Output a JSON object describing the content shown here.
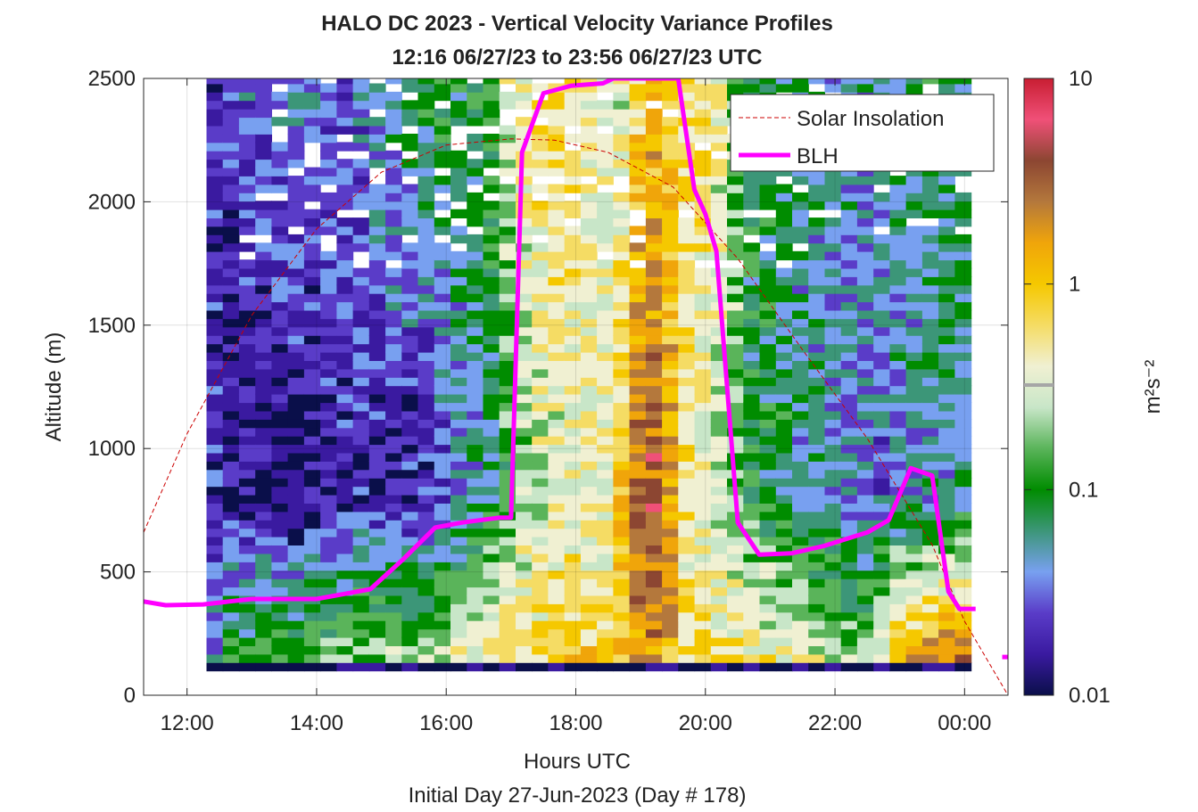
{
  "title": {
    "line1": "HALO DC 2023 - Vertical Velocity Variance Profiles",
    "line2": "12:16 06/27/23 to 23:56 06/27/23  UTC"
  },
  "xlabel": "Hours UTC",
  "subtitle": "Initial Day 27-Jun-2023 (Day # 178)",
  "ylabel": "Altitude (m)",
  "colorbar": {
    "label": "m²s⁻²",
    "ticks": [
      "10",
      "1",
      "0.1",
      "0.01"
    ]
  },
  "chart_data": {
    "type": "heatmap",
    "title": "HALO DC 2023 - Vertical Velocity Variance Profiles",
    "subtitle": "12:16 06/27/23 to 23:56 06/27/23  UTC",
    "xlabel": "Hours UTC",
    "ylabel": "Altitude (m)",
    "xlim": [
      11.33,
      24.67
    ],
    "ylim": [
      0,
      2500
    ],
    "x_ticks": [
      {
        "value": 12,
        "label": "12:00"
      },
      {
        "value": 14,
        "label": "14:00"
      },
      {
        "value": 16,
        "label": "16:00"
      },
      {
        "value": 18,
        "label": "18:00"
      },
      {
        "value": 20,
        "label": "20:00"
      },
      {
        "value": 22,
        "label": "22:00"
      },
      {
        "value": 24,
        "label": "00:00"
      }
    ],
    "y_ticks": [
      0,
      500,
      1000,
      1500,
      2000,
      2500
    ],
    "grid": true,
    "colorscale": {
      "scale": "log",
      "range": [
        0.01,
        10
      ],
      "unit": "m^2 s^-2",
      "stops": [
        "#0a0f4a",
        "#3a1aa0",
        "#5a3cc8",
        "#78a0f0",
        "#3c9678",
        "#008c00",
        "#5ab45a",
        "#c8e6c8",
        "#f0f0d2",
        "#f5dc64",
        "#f5c800",
        "#f0a50a",
        "#b4783c",
        "#8c4632",
        "#f05078",
        "#c81e32"
      ]
    },
    "variance_columns_approx": [
      {
        "hour": 12.5,
        "low_m2s2": 0.1,
        "mid_m2s2": 0.02,
        "high_m2s2": 0.02
      },
      {
        "hour": 13.5,
        "low_m2s2": 0.15,
        "mid_m2s2": 0.01,
        "high_m2s2": 0.05
      },
      {
        "hour": 14.5,
        "low_m2s2": 0.2,
        "mid_m2s2": 0.02,
        "high_m2s2": 0.03
      },
      {
        "hour": 15.5,
        "low_m2s2": 0.25,
        "mid_m2s2": 0.015,
        "high_m2s2": 0.08
      },
      {
        "hour": 16.5,
        "low_m2s2": 0.5,
        "mid_m2s2": 0.05,
        "high_m2s2": 0.1
      },
      {
        "hour": 17.5,
        "low_m2s2": 0.8,
        "mid_m2s2": 0.3,
        "high_m2s2": 0.8
      },
      {
        "hour": 18.5,
        "low_m2s2": 0.8,
        "mid_m2s2": 0.4,
        "high_m2s2": 0.2
      },
      {
        "hour": 19.0,
        "low_m2s2": 2.0,
        "mid_m2s2": 4.0,
        "high_m2s2": 1.0
      },
      {
        "hour": 19.5,
        "low_m2s2": 0.7,
        "mid_m2s2": 0.5,
        "high_m2s2": 0.8
      },
      {
        "hour": 20.5,
        "low_m2s2": 0.6,
        "mid_m2s2": 0.1,
        "high_m2s2": 0.08
      },
      {
        "hour": 21.5,
        "low_m2s2": 0.3,
        "mid_m2s2": 0.05,
        "high_m2s2": 0.05
      },
      {
        "hour": 22.5,
        "low_m2s2": 0.2,
        "mid_m2s2": 0.03,
        "high_m2s2": 0.05
      },
      {
        "hour": 23.5,
        "low_m2s2": 3.0,
        "mid_m2s2": 0.05,
        "high_m2s2": 0.08
      }
    ],
    "series": [
      {
        "name": "Solar Insolation",
        "style": "dashed",
        "color": "#cc0000",
        "x": [
          11.33,
          12.0,
          13.0,
          14.0,
          15.0,
          16.0,
          17.0,
          17.67,
          18.5,
          19.5,
          20.5,
          21.5,
          22.5,
          23.5,
          24.0,
          24.67
        ],
        "y": [
          660,
          1060,
          1540,
          1890,
          2120,
          2230,
          2255,
          2250,
          2200,
          2060,
          1770,
          1400,
          1040,
          610,
          300,
          0
        ]
      },
      {
        "name": "BLH",
        "style": "solid",
        "color": "#ff00ff",
        "x": [
          11.33,
          11.67,
          12.25,
          13.0,
          14.0,
          14.83,
          15.33,
          15.83,
          16.25,
          16.83,
          17.0,
          17.17,
          17.5,
          17.92,
          18.42,
          18.58,
          19.58,
          19.83,
          20.0,
          20.17,
          20.5,
          20.83,
          21.33,
          21.83,
          22.5,
          22.83,
          23.17,
          23.5,
          23.75,
          23.92,
          24.17
        ],
        "y": [
          380,
          365,
          368,
          390,
          390,
          430,
          550,
          680,
          700,
          720,
          720,
          2200,
          2440,
          2470,
          2480,
          2500,
          2500,
          2050,
          1950,
          1800,
          700,
          570,
          575,
          605,
          660,
          710,
          920,
          890,
          420,
          350,
          350
        ]
      },
      {
        "name": "BLH",
        "style": "segment",
        "color": "#ff00ff",
        "x": [
          24.58,
          24.67
        ],
        "y": [
          155,
          155
        ]
      }
    ],
    "legend": {
      "placement": "top-right",
      "entries": [
        "Solar Insolation",
        "BLH"
      ]
    }
  }
}
